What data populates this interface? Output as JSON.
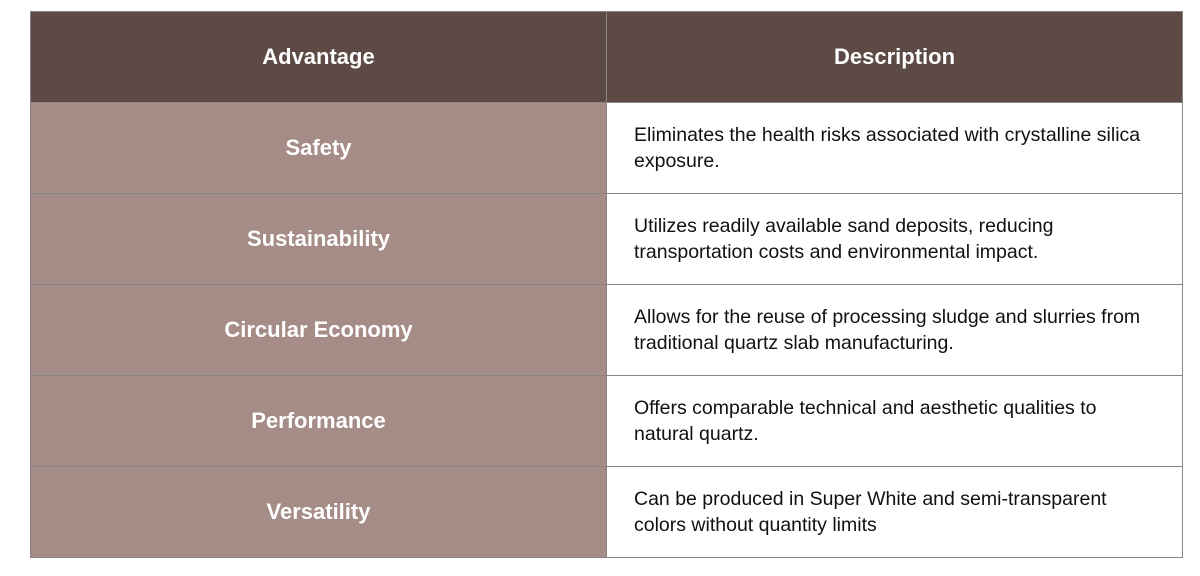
{
  "table": {
    "header": [
      "Advantage",
      "Description"
    ],
    "rows": [
      [
        "Safety",
        "Eliminates the health risks associated with crystalline silica exposure."
      ],
      [
        "Sustainability",
        "Utilizes readily available sand deposits, reducing transportation costs and environmental impact."
      ],
      [
        "Circular Economy",
        "Allows for the reuse of processing sludge and slurries from traditional quartz slab manufacturing."
      ],
      [
        "Performance",
        "Offers comparable technical and aesthetic qualities to natural quartz."
      ],
      [
        "Versatility",
        "Can be produced in Super White and semi-transparent colors without quantity limits"
      ]
    ]
  }
}
